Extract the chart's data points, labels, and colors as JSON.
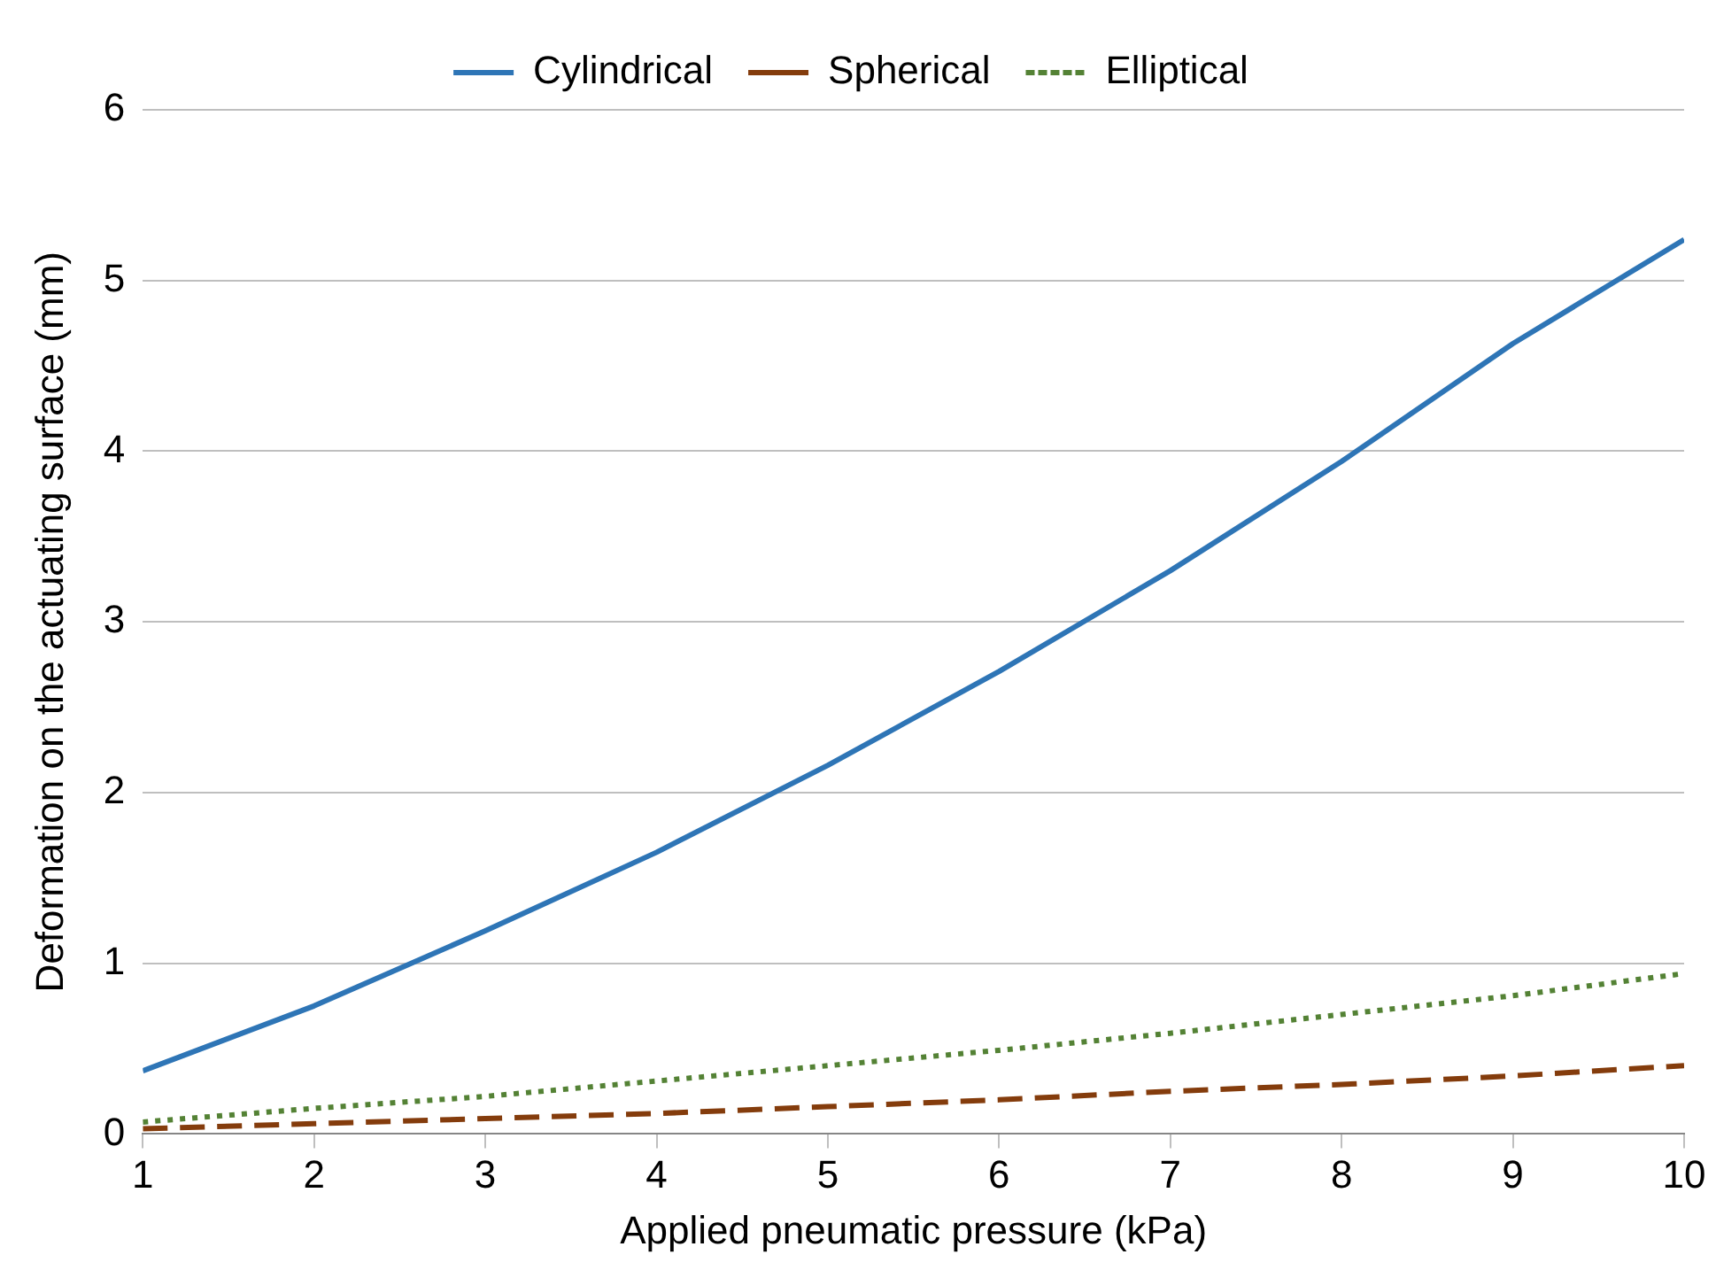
{
  "chart_data": {
    "type": "line",
    "xlabel": "Applied pneumatic pressure (kPa)",
    "ylabel": "Deformation on the actuating surface (mm)",
    "x": [
      1,
      2,
      3,
      4,
      5,
      6,
      7,
      8,
      9,
      10
    ],
    "xlim": [
      1,
      10
    ],
    "xticks": [
      1,
      2,
      3,
      4,
      5,
      6,
      7,
      8,
      9,
      10
    ],
    "ylim": [
      0,
      6
    ],
    "yticks": [
      0,
      1,
      2,
      3,
      4,
      5,
      6
    ],
    "grid": "y",
    "legend": "top",
    "marker": "none",
    "series": [
      {
        "name": "Cylindrical",
        "color": "#2e75b6",
        "line_style": "solid",
        "values": [
          0.37,
          0.75,
          1.19,
          1.65,
          2.16,
          2.71,
          3.3,
          3.94,
          4.63,
          5.24
        ]
      },
      {
        "name": "Spherical",
        "color": "#843c0c",
        "line_style": "dashed",
        "values": [
          0.03,
          0.06,
          0.09,
          0.12,
          0.16,
          0.2,
          0.25,
          0.29,
          0.34,
          0.4
        ]
      },
      {
        "name": "Elliptical",
        "color": "#548235",
        "line_style": "dotted",
        "values": [
          0.07,
          0.15,
          0.22,
          0.31,
          0.4,
          0.49,
          0.59,
          0.7,
          0.81,
          0.94
        ]
      }
    ]
  }
}
